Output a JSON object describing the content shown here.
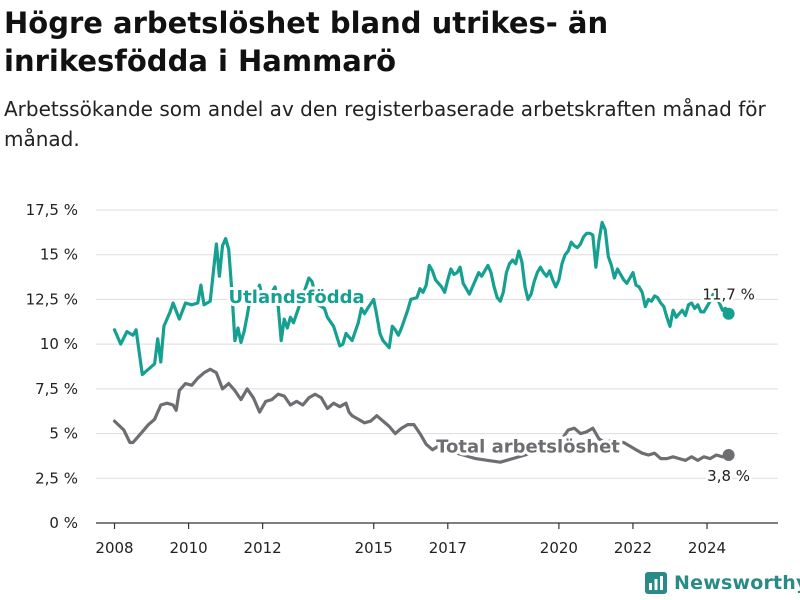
{
  "title": "Högre arbetslöshet bland utrikes- än inrikesfödda i Hammarö",
  "subtitle": "Arbetssökande som andel av den registerbaserade arbetskraften månad för månad.",
  "brand": {
    "name": "Newsworthy",
    "color": "#2a8a86",
    "icon": "newsworthy-logo-icon"
  },
  "colors": {
    "utlandsfodda": "#16a092",
    "total": "#6e6e72",
    "grid": "#dddddd",
    "axis": "#333333"
  },
  "chart_data": {
    "type": "line",
    "title": "Högre arbetslöshet bland utrikes- än inrikesfödda i Hammarö",
    "subtitle": "Arbetssökande som andel av den registerbaserade arbetskraften månad för månad.",
    "xlabel": "",
    "ylabel": "",
    "ylim": [
      0,
      17.5
    ],
    "xlim": [
      "2007-07",
      "2025-12"
    ],
    "grid": true,
    "legend": "inline",
    "y_ticks": [
      {
        "value": 0,
        "label": "0 %"
      },
      {
        "value": 2.5,
        "label": "2,5 %"
      },
      {
        "value": 5,
        "label": "5 %"
      },
      {
        "value": 7.5,
        "label": "7,5 %"
      },
      {
        "value": 10,
        "label": "10 %"
      },
      {
        "value": 12.5,
        "label": "12,5 %"
      },
      {
        "value": 15,
        "label": "15 %"
      },
      {
        "value": 17.5,
        "label": "17,5 %"
      }
    ],
    "x_ticks": [
      {
        "value": "2008-01",
        "label": "2008"
      },
      {
        "value": "2010-01",
        "label": "2010"
      },
      {
        "value": "2012-01",
        "label": "2012"
      },
      {
        "value": "2015-01",
        "label": "2015"
      },
      {
        "value": "2017-01",
        "label": "2017"
      },
      {
        "value": "2020-01",
        "label": "2020"
      },
      {
        "value": "2022-01",
        "label": "2022"
      },
      {
        "value": "2024-01",
        "label": "2024"
      }
    ],
    "series": [
      {
        "name": "Utlandsfödda",
        "label_at": {
          "x": "2012-12",
          "y": 12.3
        },
        "end_label": "11,7 %",
        "points": [
          [
            "2008-01",
            10.8
          ],
          [
            "2008-03",
            10.0
          ],
          [
            "2008-05",
            10.7
          ],
          [
            "2008-07",
            10.5
          ],
          [
            "2008-08",
            10.8
          ],
          [
            "2008-10",
            8.3
          ],
          [
            "2008-12",
            8.6
          ],
          [
            "2009-02",
            8.9
          ],
          [
            "2009-03",
            10.3
          ],
          [
            "2009-04",
            9.0
          ],
          [
            "2009-05",
            11.0
          ],
          [
            "2009-07",
            11.8
          ],
          [
            "2009-08",
            12.3
          ],
          [
            "2009-10",
            11.4
          ],
          [
            "2009-12",
            12.3
          ],
          [
            "2010-02",
            12.2
          ],
          [
            "2010-04",
            12.3
          ],
          [
            "2010-05",
            13.3
          ],
          [
            "2010-06",
            12.2
          ],
          [
            "2010-08",
            12.4
          ],
          [
            "2010-09",
            14.0
          ],
          [
            "2010-10",
            15.6
          ],
          [
            "2010-11",
            13.8
          ],
          [
            "2010-12",
            15.5
          ],
          [
            "2011-01",
            15.9
          ],
          [
            "2011-02",
            15.3
          ],
          [
            "2011-03",
            13.0
          ],
          [
            "2011-04",
            10.2
          ],
          [
            "2011-05",
            10.9
          ],
          [
            "2011-06",
            10.1
          ],
          [
            "2011-07",
            10.7
          ],
          [
            "2011-08",
            11.6
          ],
          [
            "2011-09",
            12.6
          ],
          [
            "2011-10",
            12.4
          ],
          [
            "2011-11",
            12.9
          ],
          [
            "2011-12",
            13.3
          ],
          [
            "2012-01",
            12.5
          ],
          [
            "2012-03",
            12.6
          ],
          [
            "2012-04",
            12.9
          ],
          [
            "2012-05",
            13.2
          ],
          [
            "2012-06",
            12.2
          ],
          [
            "2012-07",
            10.2
          ],
          [
            "2012-08",
            11.4
          ],
          [
            "2012-09",
            10.9
          ],
          [
            "2012-10",
            11.5
          ],
          [
            "2012-11",
            11.2
          ],
          [
            "2012-12",
            11.7
          ],
          [
            "2013-02",
            12.7
          ],
          [
            "2013-04",
            13.7
          ],
          [
            "2013-05",
            13.5
          ],
          [
            "2013-06",
            12.8
          ],
          [
            "2013-07",
            12.2
          ],
          [
            "2013-09",
            12.0
          ],
          [
            "2013-10",
            11.5
          ],
          [
            "2013-12",
            11.0
          ],
          [
            "2014-02",
            9.9
          ],
          [
            "2014-03",
            10.0
          ],
          [
            "2014-04",
            10.6
          ],
          [
            "2014-06",
            10.2
          ],
          [
            "2014-07",
            10.7
          ],
          [
            "2014-08",
            11.2
          ],
          [
            "2014-09",
            12.0
          ],
          [
            "2014-10",
            11.7
          ],
          [
            "2014-11",
            12.0
          ],
          [
            "2015-01",
            12.5
          ],
          [
            "2015-02",
            11.6
          ],
          [
            "2015-03",
            10.6
          ],
          [
            "2015-04",
            10.2
          ],
          [
            "2015-06",
            9.8
          ],
          [
            "2015-07",
            11.0
          ],
          [
            "2015-08",
            10.8
          ],
          [
            "2015-09",
            10.5
          ],
          [
            "2015-10",
            10.9
          ],
          [
            "2015-11",
            11.4
          ],
          [
            "2015-12",
            11.9
          ],
          [
            "2016-01",
            12.5
          ],
          [
            "2016-03",
            12.6
          ],
          [
            "2016-04",
            13.1
          ],
          [
            "2016-05",
            12.9
          ],
          [
            "2016-06",
            13.3
          ],
          [
            "2016-07",
            14.4
          ],
          [
            "2016-08",
            14.1
          ],
          [
            "2016-09",
            13.6
          ],
          [
            "2016-10",
            13.4
          ],
          [
            "2016-11",
            13.2
          ],
          [
            "2016-12",
            12.9
          ],
          [
            "2017-01",
            13.6
          ],
          [
            "2017-02",
            14.2
          ],
          [
            "2017-03",
            13.9
          ],
          [
            "2017-04",
            14.0
          ],
          [
            "2017-05",
            14.3
          ],
          [
            "2017-06",
            13.4
          ],
          [
            "2017-07",
            13.1
          ],
          [
            "2017-08",
            12.8
          ],
          [
            "2017-09",
            13.2
          ],
          [
            "2017-10",
            13.6
          ],
          [
            "2017-11",
            14.0
          ],
          [
            "2017-12",
            13.8
          ],
          [
            "2018-01",
            14.1
          ],
          [
            "2018-02",
            14.4
          ],
          [
            "2018-03",
            14.0
          ],
          [
            "2018-04",
            13.2
          ],
          [
            "2018-05",
            12.6
          ],
          [
            "2018-06",
            12.4
          ],
          [
            "2018-07",
            12.9
          ],
          [
            "2018-08",
            14.0
          ],
          [
            "2018-09",
            14.5
          ],
          [
            "2018-10",
            14.7
          ],
          [
            "2018-11",
            14.5
          ],
          [
            "2018-12",
            15.2
          ],
          [
            "2019-01",
            14.6
          ],
          [
            "2019-02",
            13.2
          ],
          [
            "2019-03",
            12.5
          ],
          [
            "2019-04",
            12.8
          ],
          [
            "2019-05",
            13.5
          ],
          [
            "2019-06",
            14.0
          ],
          [
            "2019-07",
            14.3
          ],
          [
            "2019-08",
            14.0
          ],
          [
            "2019-09",
            13.8
          ],
          [
            "2019-10",
            14.1
          ],
          [
            "2019-11",
            13.6
          ],
          [
            "2019-12",
            13.2
          ],
          [
            "2020-01",
            13.6
          ],
          [
            "2020-02",
            14.5
          ],
          [
            "2020-03",
            15.0
          ],
          [
            "2020-04",
            15.2
          ],
          [
            "2020-05",
            15.7
          ],
          [
            "2020-06",
            15.5
          ],
          [
            "2020-07",
            15.4
          ],
          [
            "2020-08",
            15.6
          ],
          [
            "2020-09",
            16.0
          ],
          [
            "2020-10",
            16.2
          ],
          [
            "2020-11",
            16.2
          ],
          [
            "2020-12",
            16.1
          ],
          [
            "2021-01",
            14.3
          ],
          [
            "2021-02",
            15.8
          ],
          [
            "2021-03",
            16.8
          ],
          [
            "2021-04",
            16.4
          ],
          [
            "2021-05",
            14.9
          ],
          [
            "2021-06",
            14.4
          ],
          [
            "2021-07",
            13.7
          ],
          [
            "2021-08",
            14.2
          ],
          [
            "2021-09",
            13.9
          ],
          [
            "2021-10",
            13.6
          ],
          [
            "2021-11",
            13.4
          ],
          [
            "2021-12",
            13.7
          ],
          [
            "2022-01",
            14.0
          ],
          [
            "2022-02",
            13.3
          ],
          [
            "2022-03",
            13.2
          ],
          [
            "2022-04",
            12.9
          ],
          [
            "2022-05",
            12.1
          ],
          [
            "2022-06",
            12.5
          ],
          [
            "2022-07",
            12.4
          ],
          [
            "2022-08",
            12.7
          ],
          [
            "2022-09",
            12.6
          ],
          [
            "2022-10",
            12.3
          ],
          [
            "2022-11",
            12.1
          ],
          [
            "2022-12",
            11.5
          ],
          [
            "2023-01",
            11.0
          ],
          [
            "2023-02",
            11.9
          ],
          [
            "2023-03",
            11.5
          ],
          [
            "2023-04",
            11.7
          ],
          [
            "2023-05",
            11.9
          ],
          [
            "2023-06",
            11.6
          ],
          [
            "2023-07",
            12.2
          ],
          [
            "2023-08",
            12.3
          ],
          [
            "2023-09",
            12.0
          ],
          [
            "2023-10",
            12.2
          ],
          [
            "2023-11",
            11.8
          ],
          [
            "2023-12",
            11.8
          ],
          [
            "2024-01",
            12.1
          ],
          [
            "2024-02",
            12.4
          ],
          [
            "2024-03",
            12.8
          ],
          [
            "2024-04",
            12.6
          ],
          [
            "2024-05",
            12.3
          ],
          [
            "2024-06",
            11.9
          ],
          [
            "2024-07",
            12.0
          ],
          [
            "2024-08",
            11.7
          ]
        ]
      },
      {
        "name": "Total arbetslöshet",
        "label_at": {
          "x": "2019-03",
          "y": 3.95
        },
        "end_label": "3,8 %",
        "points": [
          [
            "2008-01",
            5.7
          ],
          [
            "2008-04",
            5.2
          ],
          [
            "2008-06",
            4.5
          ],
          [
            "2008-07",
            4.5
          ],
          [
            "2008-08",
            4.7
          ],
          [
            "2008-10",
            5.1
          ],
          [
            "2008-12",
            5.5
          ],
          [
            "2009-02",
            5.8
          ],
          [
            "2009-04",
            6.6
          ],
          [
            "2009-06",
            6.7
          ],
          [
            "2009-08",
            6.6
          ],
          [
            "2009-09",
            6.3
          ],
          [
            "2009-10",
            7.4
          ],
          [
            "2009-12",
            7.8
          ],
          [
            "2010-02",
            7.7
          ],
          [
            "2010-04",
            8.1
          ],
          [
            "2010-06",
            8.4
          ],
          [
            "2010-08",
            8.6
          ],
          [
            "2010-10",
            8.4
          ],
          [
            "2010-12",
            7.5
          ],
          [
            "2011-02",
            7.8
          ],
          [
            "2011-04",
            7.4
          ],
          [
            "2011-06",
            6.9
          ],
          [
            "2011-08",
            7.5
          ],
          [
            "2011-10",
            7.0
          ],
          [
            "2011-12",
            6.2
          ],
          [
            "2012-02",
            6.8
          ],
          [
            "2012-04",
            6.9
          ],
          [
            "2012-06",
            7.2
          ],
          [
            "2012-08",
            7.1
          ],
          [
            "2012-10",
            6.6
          ],
          [
            "2012-12",
            6.8
          ],
          [
            "2013-02",
            6.6
          ],
          [
            "2013-04",
            7.0
          ],
          [
            "2013-06",
            7.2
          ],
          [
            "2013-08",
            7.0
          ],
          [
            "2013-10",
            6.4
          ],
          [
            "2013-12",
            6.7
          ],
          [
            "2014-02",
            6.5
          ],
          [
            "2014-04",
            6.7
          ],
          [
            "2014-05",
            6.2
          ],
          [
            "2014-06",
            6.0
          ],
          [
            "2014-08",
            5.8
          ],
          [
            "2014-10",
            5.6
          ],
          [
            "2014-12",
            5.7
          ],
          [
            "2015-02",
            6.0
          ],
          [
            "2015-04",
            5.7
          ],
          [
            "2015-06",
            5.4
          ],
          [
            "2015-08",
            5.0
          ],
          [
            "2015-10",
            5.3
          ],
          [
            "2015-12",
            5.5
          ],
          [
            "2016-02",
            5.5
          ],
          [
            "2016-04",
            5.0
          ],
          [
            "2016-06",
            4.4
          ],
          [
            "2016-08",
            4.1
          ],
          [
            "2016-10",
            4.3
          ],
          [
            "2016-12",
            4.1
          ],
          [
            "2017-02",
            4.0
          ],
          [
            "2017-06",
            3.8
          ],
          [
            "2017-10",
            3.6
          ],
          [
            "2018-02",
            3.5
          ],
          [
            "2018-06",
            3.4
          ],
          [
            "2018-10",
            3.6
          ],
          [
            "2019-02",
            3.8
          ],
          [
            "2019-06",
            4.1
          ],
          [
            "2019-10",
            4.4
          ],
          [
            "2020-02",
            4.7
          ],
          [
            "2020-04",
            5.2
          ],
          [
            "2020-06",
            5.3
          ],
          [
            "2020-08",
            5.0
          ],
          [
            "2020-10",
            5.1
          ],
          [
            "2020-12",
            5.3
          ],
          [
            "2021-02",
            4.7
          ],
          [
            "2021-04",
            4.5
          ],
          [
            "2021-06",
            4.6
          ],
          [
            "2021-08",
            4.5
          ],
          [
            "2021-10",
            4.5
          ],
          [
            "2021-12",
            4.3
          ],
          [
            "2022-02",
            4.1
          ],
          [
            "2022-04",
            3.9
          ],
          [
            "2022-06",
            3.8
          ],
          [
            "2022-08",
            3.9
          ],
          [
            "2022-10",
            3.6
          ],
          [
            "2022-12",
            3.6
          ],
          [
            "2023-02",
            3.7
          ],
          [
            "2023-04",
            3.6
          ],
          [
            "2023-06",
            3.5
          ],
          [
            "2023-08",
            3.7
          ],
          [
            "2023-10",
            3.5
          ],
          [
            "2023-12",
            3.7
          ],
          [
            "2024-02",
            3.6
          ],
          [
            "2024-04",
            3.8
          ],
          [
            "2024-06",
            3.7
          ],
          [
            "2024-08",
            3.8
          ]
        ]
      }
    ]
  }
}
